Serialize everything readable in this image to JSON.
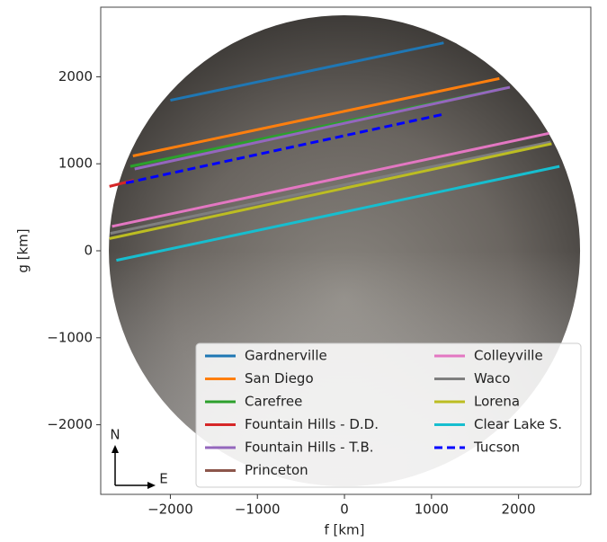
{
  "chart_data": {
    "type": "line",
    "x_label": "f [km]",
    "y_label": "g [km]",
    "xlim": [
      -2800,
      2830
    ],
    "ylim": [
      -2800,
      2800
    ],
    "xticks": [
      {
        "value": -2000,
        "label": "−2000"
      },
      {
        "value": -1000,
        "label": "−1000"
      },
      0,
      1000,
      2000
    ],
    "yticks": [
      {
        "value": -2000,
        "label": "−2000"
      },
      {
        "value": -1000,
        "label": "−1000"
      },
      0,
      1000,
      2000
    ],
    "legend": "lower right",
    "compass_labels": [
      "N",
      "E"
    ],
    "series": [
      {
        "name": "Gardnerville",
        "color": "#1f77b4",
        "x": [
          -2000,
          1140
        ],
        "values": [
          1730,
          2390
        ]
      },
      {
        "name": "San Diego",
        "color": "#ff7f0e",
        "x": [
          -2430,
          1780
        ],
        "values": [
          1090,
          1980
        ]
      },
      {
        "name": "Carefree",
        "color": "#2ca02c",
        "x": [
          -2460,
          1850
        ],
        "values": [
          970,
          1870
        ]
      },
      {
        "name": "Fountain Hills - D.D.",
        "color": "#d62728",
        "x": [
          -2700,
          -2420
        ],
        "values": [
          740,
          810
        ]
      },
      {
        "name": "Fountain Hills - T.B.",
        "color": "#9467bd",
        "x": [
          -2410,
          1900
        ],
        "values": [
          940,
          1880
        ]
      },
      {
        "name": "Princeton",
        "color": "#8c564b",
        "x": [
          null,
          null
        ],
        "values": [
          null,
          null
        ]
      },
      {
        "name": "Colleyville",
        "color": "#e377c2",
        "x": [
          -2670,
          2350
        ],
        "values": [
          280,
          1350
        ]
      },
      {
        "name": "Waco",
        "color": "#7f7f7f",
        "x": [
          -2690,
          2370
        ],
        "values": [
          200,
          1250
        ]
      },
      {
        "name": "Lorena",
        "color": "#bcbd22",
        "x": [
          -2700,
          2380
        ],
        "values": [
          140,
          1230
        ]
      },
      {
        "name": "Clear Lake S.",
        "color": "#17becf",
        "x": [
          -2620,
          2470
        ],
        "values": [
          -110,
          970
        ]
      },
      {
        "name": "Tucson",
        "color": "#0000ff",
        "dash": true,
        "x": [
          -2510,
          1140
        ],
        "values": [
          780,
          1570
        ]
      }
    ]
  }
}
